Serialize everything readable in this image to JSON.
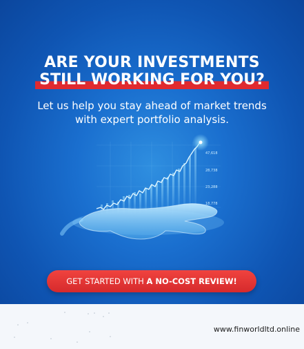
{
  "headline": {
    "line1": "ARE YOUR INVESTMENTS",
    "line2": "STILL WORKING FOR YOU?"
  },
  "subheadline": {
    "line1": "Let us help you stay ahead of market trends",
    "line2": "with expert portfolio analysis."
  },
  "cta": {
    "prefix": "GET STARTED WITH ",
    "emphasis": "A NO-COST REVIEW!"
  },
  "chart_labels": [
    "47,618",
    "28,738",
    "23,288",
    "18,778"
  ],
  "footer": {
    "url": "www.finworldltd.online"
  },
  "colors": {
    "banner_blue": "#1a6fcf",
    "highlight_red": "#e02a2f",
    "cta_red": "#e33633"
  }
}
